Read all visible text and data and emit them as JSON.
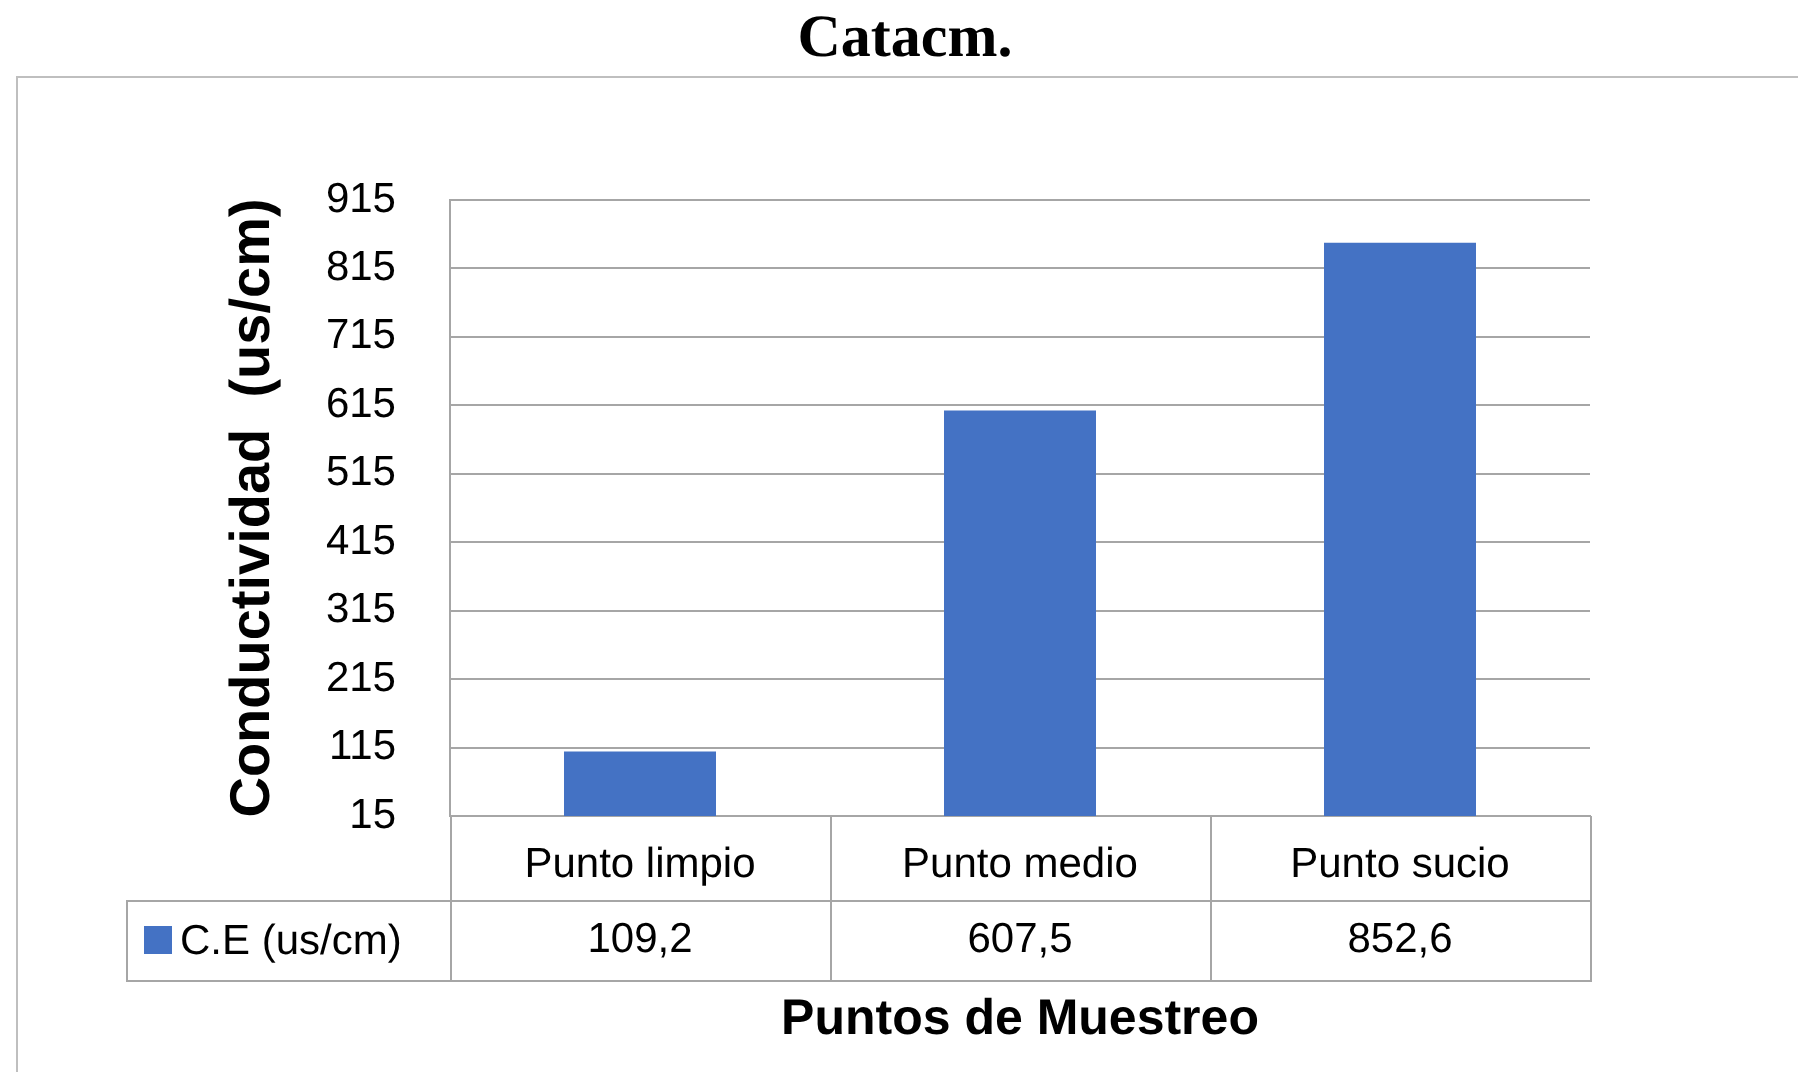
{
  "chart_data": {
    "type": "bar",
    "title": "Catacm.",
    "xlabel": "Puntos de Muestreo",
    "ylabel": "Conductividad  (us/cm)",
    "categories": [
      "Punto limpio",
      "Punto medio",
      "Punto sucio"
    ],
    "series": [
      {
        "name": "C.E (us/cm)",
        "color": "#4472c4",
        "values": [
          109.2,
          607.5,
          852.6
        ],
        "value_labels": [
          "109,2",
          "607,5",
          "852,6"
        ]
      }
    ],
    "ylim": [
      15,
      915
    ],
    "yticks": [
      15,
      115,
      215,
      315,
      415,
      515,
      615,
      715,
      815,
      915
    ],
    "grid": "y",
    "legend": "bottom"
  }
}
